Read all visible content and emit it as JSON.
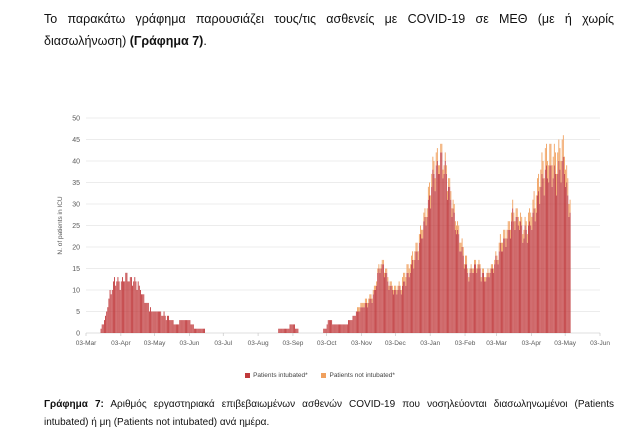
{
  "intro": {
    "text": "Το παρακάτω γράφημα παρουσιάζει τους/τις ασθενείς με COVID-19 σε ΜΕΘ (με ή χωρίς διασωλήνωση) ",
    "bold": "(Γράφημα 7)",
    "end": "."
  },
  "caption": {
    "bold": "Γράφημα 7:",
    "text": " Αριθμός εργαστηριακά επιβεβαιωμένων ασθενών COVID-19 που νοσηλεύονται διασωληνωμένοι (Patients intubated) ή μη (Patients not intubated) ανά ημέρα."
  },
  "colors": {
    "intubated": "#c0393b",
    "not_intubated": "#f0a05e",
    "grid": "#d9d9d9",
    "axis": "#bfbfbf",
    "text": "#595959"
  },
  "chart_data": {
    "type": "bar",
    "stacked": true,
    "title": "",
    "xlabel": "",
    "ylabel": "N. of patients in ICU",
    "ylim": [
      0,
      50
    ],
    "yticks": [
      0,
      5,
      10,
      15,
      20,
      25,
      30,
      35,
      40,
      45,
      50
    ],
    "grid": true,
    "legend_position": "bottom",
    "x_start": "2020-03-03",
    "x_end": "2021-06-03",
    "xtick_labels": [
      "03-Mar",
      "03-Apr",
      "03-May",
      "03-Jun",
      "03-Jul",
      "03-Aug",
      "03-Sep",
      "03-Oct",
      "03-Nov",
      "03-Dec",
      "03-Jan",
      "03-Feb",
      "03-Mar",
      "03-Apr",
      "03-May",
      "03-Jun"
    ],
    "xtick_dates": [
      "2020-03-03",
      "2020-04-03",
      "2020-05-03",
      "2020-06-03",
      "2020-07-03",
      "2020-08-03",
      "2020-09-03",
      "2020-10-03",
      "2020-11-03",
      "2020-12-03",
      "2021-01-03",
      "2021-02-03",
      "2021-03-03",
      "2021-04-03",
      "2021-05-03",
      "2021-06-03"
    ],
    "series": [
      {
        "name": "Patients intubated*",
        "color": "#c0393b",
        "points": [
          [
            "2020-03-16",
            1
          ],
          [
            "2020-03-20",
            4
          ],
          [
            "2020-03-24",
            9
          ],
          [
            "2020-03-28",
            12
          ],
          [
            "2020-04-03",
            11
          ],
          [
            "2020-04-07",
            13
          ],
          [
            "2020-04-12",
            12
          ],
          [
            "2020-04-18",
            11
          ],
          [
            "2020-04-23",
            8
          ],
          [
            "2020-04-30",
            5
          ],
          [
            "2020-05-06",
            5
          ],
          [
            "2020-05-12",
            4
          ],
          [
            "2020-05-18",
            3
          ],
          [
            "2020-05-22",
            2
          ],
          [
            "2020-05-28",
            3
          ],
          [
            "2020-06-03",
            3
          ],
          [
            "2020-06-08",
            1
          ],
          [
            "2020-06-15",
            1
          ],
          [
            "2020-06-18",
            0
          ],
          [
            "2020-08-20",
            0
          ],
          [
            "2020-08-22",
            1
          ],
          [
            "2020-08-28",
            1
          ],
          [
            "2020-09-03",
            2
          ],
          [
            "2020-09-06",
            1
          ],
          [
            "2020-09-08",
            0
          ],
          [
            "2020-09-28",
            0
          ],
          [
            "2020-10-01",
            1
          ],
          [
            "2020-10-05",
            3
          ],
          [
            "2020-10-09",
            2
          ],
          [
            "2020-10-15",
            2
          ],
          [
            "2020-10-20",
            2
          ],
          [
            "2020-10-25",
            3
          ],
          [
            "2020-10-30",
            5
          ],
          [
            "2020-11-04",
            6
          ],
          [
            "2020-11-08",
            7
          ],
          [
            "2020-11-13",
            8
          ],
          [
            "2020-11-18",
            14
          ],
          [
            "2020-11-22",
            15
          ],
          [
            "2020-11-27",
            11
          ],
          [
            "2020-12-02",
            9
          ],
          [
            "2020-12-07",
            10
          ],
          [
            "2020-12-12",
            12
          ],
          [
            "2020-12-17",
            15
          ],
          [
            "2020-12-22",
            18
          ],
          [
            "2020-12-27",
            23
          ],
          [
            "2021-01-01",
            28
          ],
          [
            "2021-01-05",
            35
          ],
          [
            "2021-01-09",
            37
          ],
          [
            "2021-01-13",
            39
          ],
          [
            "2021-01-17",
            35
          ],
          [
            "2021-01-21",
            30
          ],
          [
            "2021-01-26",
            23
          ],
          [
            "2021-02-01",
            17
          ],
          [
            "2021-02-06",
            13
          ],
          [
            "2021-02-11",
            15
          ],
          [
            "2021-02-16",
            14
          ],
          [
            "2021-02-21",
            12
          ],
          [
            "2021-02-26",
            14
          ],
          [
            "2021-03-03",
            17
          ],
          [
            "2021-03-08",
            20
          ],
          [
            "2021-03-13",
            22
          ],
          [
            "2021-03-17",
            26
          ],
          [
            "2021-03-22",
            25
          ],
          [
            "2021-03-27",
            22
          ],
          [
            "2021-04-01",
            24
          ],
          [
            "2021-04-06",
            27
          ],
          [
            "2021-04-10",
            32
          ],
          [
            "2021-04-15",
            36
          ],
          [
            "2021-04-20",
            36
          ],
          [
            "2021-04-25",
            35
          ],
          [
            "2021-04-29",
            38
          ],
          [
            "2021-05-02",
            37
          ],
          [
            "2021-05-05",
            30
          ],
          [
            "2021-05-07",
            28
          ]
        ]
      },
      {
        "name": "Patients not intubated*",
        "color": "#f0a05e",
        "points": [
          [
            "2020-03-16",
            0
          ],
          [
            "2020-10-25",
            0
          ],
          [
            "2020-11-04",
            1
          ],
          [
            "2020-11-18",
            1
          ],
          [
            "2020-12-02",
            1
          ],
          [
            "2020-12-17",
            2
          ],
          [
            "2020-12-27",
            2
          ],
          [
            "2021-01-05",
            3
          ],
          [
            "2021-01-13",
            2
          ],
          [
            "2021-01-26",
            2
          ],
          [
            "2021-02-11",
            1
          ],
          [
            "2021-02-26",
            1
          ],
          [
            "2021-03-13",
            2
          ],
          [
            "2021-03-27",
            2
          ],
          [
            "2021-04-10",
            4
          ],
          [
            "2021-04-25",
            5
          ],
          [
            "2021-04-29",
            5
          ],
          [
            "2021-05-02",
            4
          ],
          [
            "2021-05-07",
            3
          ]
        ]
      }
    ]
  }
}
